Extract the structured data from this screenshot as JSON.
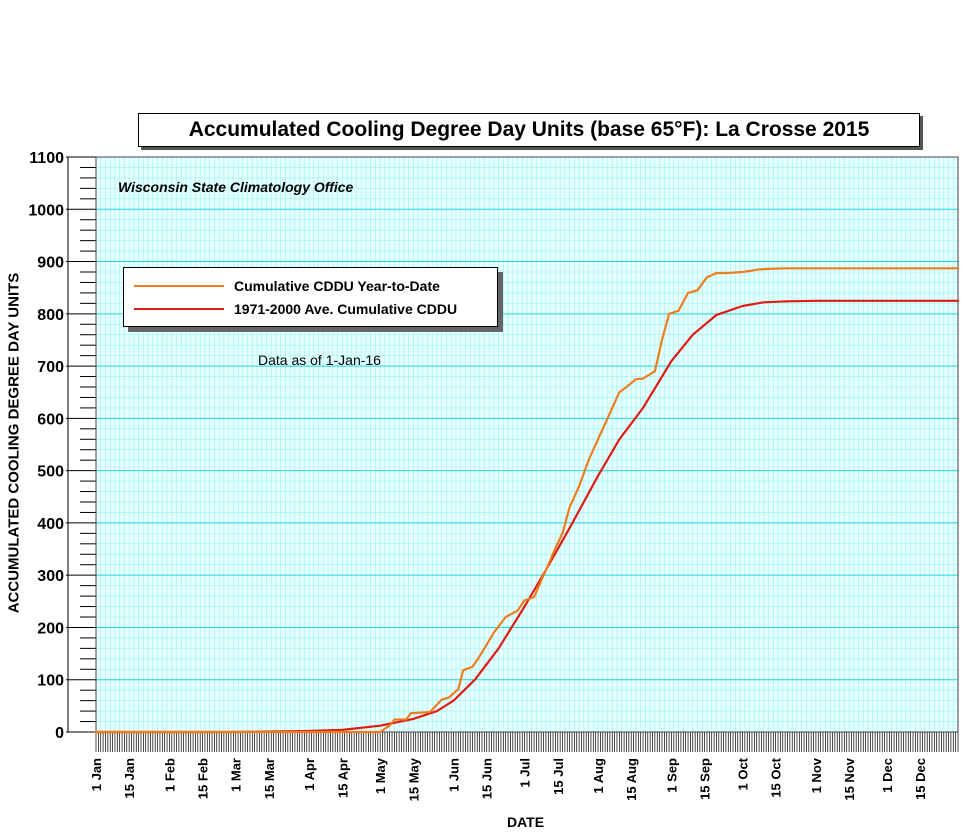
{
  "chart_data": {
    "type": "line",
    "title": "Accumulated Cooling Degree Day Units (base 65°F): La Crosse 2015",
    "subtitle": "Wisconsin State Climatology Office",
    "annotation": "Data as of 1-Jan-16",
    "xlabel": "DATE",
    "ylabel": "ACCUMULATED COOLING DEGREE DAY UNITS",
    "ylim": [
      0,
      1100
    ],
    "yticks": [
      0,
      100,
      200,
      300,
      400,
      500,
      600,
      700,
      800,
      900,
      1000,
      1100
    ],
    "xlim": [
      "1 Jan",
      "31 Dec"
    ],
    "xtick_labels": [
      "1 Jan",
      "15 Jan",
      "1 Feb",
      "15 Feb",
      "1 Mar",
      "15 Mar",
      "1 Apr",
      "15 Apr",
      "1 May",
      "15 May",
      "1 Jun",
      "15 Jun",
      "1 Jul",
      "15 Jul",
      "1 Aug",
      "15 Aug",
      "1 Sep",
      "15 Sep",
      "1 Oct",
      "15 Oct",
      "1 Nov",
      "15 Nov",
      "1 Dec",
      "15 Dec"
    ],
    "grid": true,
    "legend_position": "upper-left",
    "background_color": "#e3ffff",
    "grid_color": "#25d6dd",
    "series": [
      {
        "name": "Cumulative CDDU Year-to-Date",
        "color": "#ee7d1e",
        "x": [
          "1 Jan",
          "1 Mar",
          "1 Apr",
          "20 Apr",
          "1 May",
          "5 May",
          "7 May",
          "12 May",
          "14 May",
          "22 May",
          "27 May",
          "30 May",
          "3 Jun",
          "5 Jun",
          "9 Jun",
          "11 Jun",
          "14 Jun",
          "18 Jun",
          "23 Jun",
          "28 Jun",
          "1 Jul",
          "5 Jul",
          "9 Jul",
          "11 Jul",
          "14 Jul",
          "17 Jul",
          "20 Jul",
          "24 Jul",
          "28 Jul",
          "1 Aug",
          "5 Aug",
          "10 Aug",
          "13 Aug",
          "17 Aug",
          "20 Aug",
          "25 Aug",
          "28 Aug",
          "31 Aug",
          "4 Sep",
          "8 Sep",
          "12 Sep",
          "16 Sep",
          "20 Sep",
          "25 Sep",
          "1 Oct",
          "8 Oct",
          "12 Oct",
          "20 Oct",
          "31 Dec"
        ],
        "values": [
          0,
          0,
          0,
          0,
          0,
          12,
          24,
          24,
          36,
          38,
          62,
          66,
          82,
          118,
          125,
          138,
          160,
          190,
          220,
          232,
          252,
          258,
          300,
          320,
          352,
          380,
          430,
          470,
          520,
          560,
          600,
          650,
          660,
          675,
          676,
          690,
          750,
          800,
          806,
          840,
          845,
          870,
          878,
          878,
          880,
          885,
          886,
          887,
          887
        ]
      },
      {
        "name": "1971-2000 Ave. Cumulative CDDU",
        "color": "#df1b12",
        "x": [
          "1 Jan",
          "1 Mar",
          "1 Apr",
          "15 Apr",
          "1 May",
          "15 May",
          "25 May",
          "1 Jun",
          "10 Jun",
          "20 Jun",
          "1 Jul",
          "10 Jul",
          "20 Jul",
          "1 Aug",
          "10 Aug",
          "20 Aug",
          "1 Sep",
          "10 Sep",
          "20 Sep",
          "1 Oct",
          "10 Oct",
          "20 Oct",
          "1 Nov",
          "1 Dec",
          "31 Dec"
        ],
        "values": [
          0,
          0,
          2,
          4,
          12,
          25,
          40,
          60,
          100,
          160,
          240,
          310,
          390,
          490,
          560,
          620,
          710,
          760,
          798,
          815,
          822,
          824,
          825,
          825,
          825
        ]
      }
    ]
  }
}
